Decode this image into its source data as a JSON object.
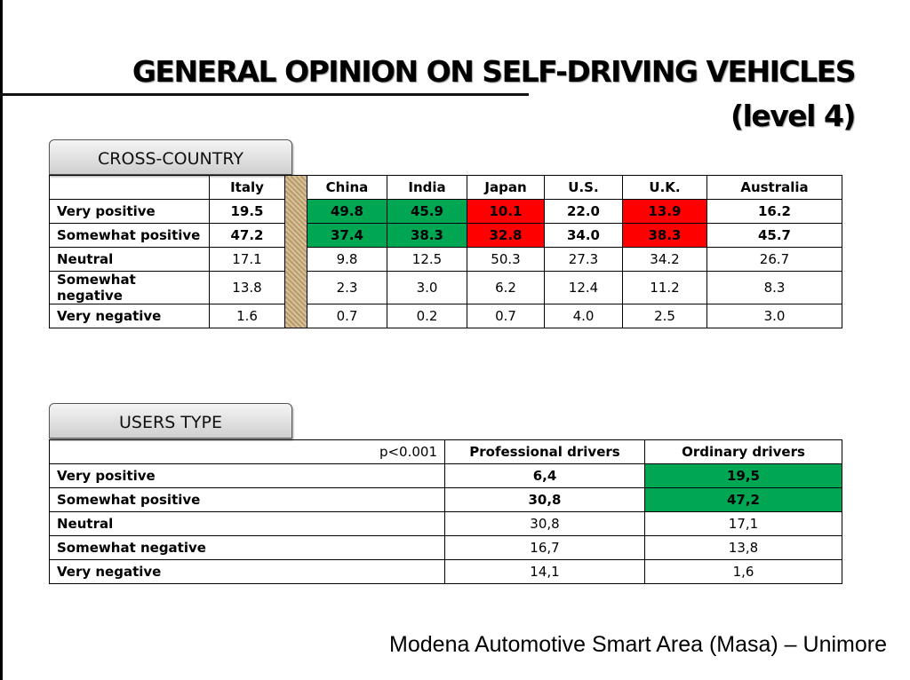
{
  "title": {
    "line1": "GENERAL OPINION ON SELF-DRIVING VEHICLES",
    "line2": "(level 4)"
  },
  "cross_country": {
    "label": "CROSS-COUNTRY",
    "columns": [
      "Italy",
      "China",
      "India",
      "Japan",
      "U.S.",
      "U.K.",
      "Australia"
    ],
    "rows": [
      {
        "label": "Very positive",
        "values": [
          "19.5",
          "49.8",
          "45.9",
          "10.1",
          "22.0",
          "13.9",
          "16.2"
        ]
      },
      {
        "label": "Somewhat positive",
        "values": [
          "47.2",
          "37.4",
          "38.3",
          "32.8",
          "34.0",
          "38.3",
          "45.7"
        ]
      },
      {
        "label": "Neutral",
        "values": [
          "17.1",
          "9.8",
          "12.5",
          "50.3",
          "27.3",
          "34.2",
          "26.7"
        ]
      },
      {
        "label": "Somewhat negative",
        "values": [
          "13.8",
          "2.3",
          "3.0",
          "6.2",
          "12.4",
          "11.2",
          "8.3"
        ]
      },
      {
        "label": "Very negative",
        "values": [
          "1.6",
          "0.7",
          "0.2",
          "0.7",
          "4.0",
          "2.5",
          "3.0"
        ]
      }
    ],
    "highlight_colors": {
      "green": "#00a651",
      "red": "#ff0000"
    }
  },
  "users_type": {
    "label": "USERS TYPE",
    "significance": "p<0.001",
    "columns": [
      "Professional drivers",
      "Ordinary drivers"
    ],
    "rows": [
      {
        "label": "Very positive",
        "values": [
          "6,4",
          "19,5"
        ]
      },
      {
        "label": "Somewhat positive",
        "values": [
          "30,8",
          "47,2"
        ]
      },
      {
        "label": "Neutral",
        "values": [
          "30,8",
          "17,1"
        ]
      },
      {
        "label": "Somewhat negative",
        "values": [
          "16,7",
          "13,8"
        ]
      },
      {
        "label": "Very negative",
        "values": [
          "14,1",
          "1,6"
        ]
      }
    ]
  },
  "footer": "Modena Automotive Smart Area (Masa) – Unimore"
}
